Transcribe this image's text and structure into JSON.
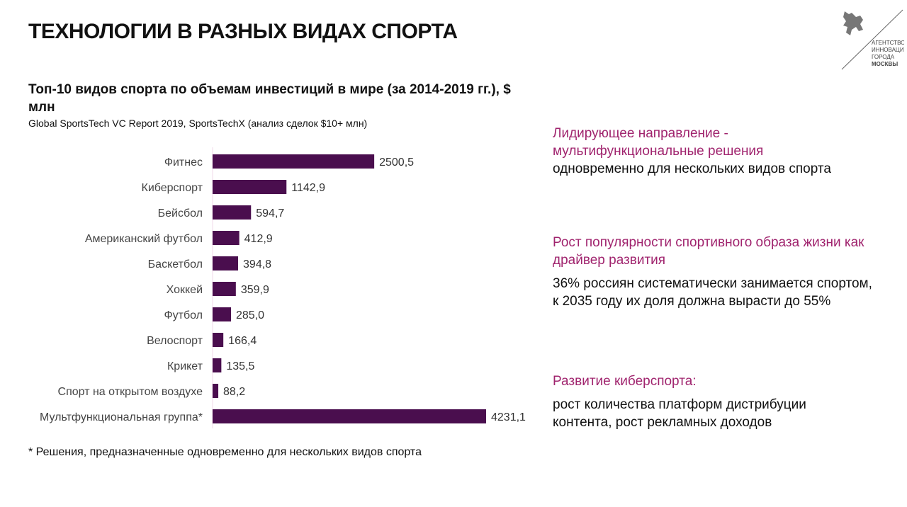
{
  "title": "ТЕХНОЛОГИИ В РАЗНЫХ ВИДАХ СПОРТА",
  "logo": {
    "lines": [
      "АГЕНТСТВО",
      "ИННОВАЦИЙ",
      "ГОРОДА",
      "МОСКВЫ"
    ]
  },
  "chart_data": {
    "type": "bar",
    "orientation": "horizontal",
    "title": "Топ-10 видов спорта по объемам инвестиций в мире (за 2014-2019 гг.), $ млн",
    "subtitle": "Global SportsTech VC Report 2019, SportsTechX (анализ сделок $10+ млн)",
    "categories": [
      "Фитнес",
      "Киберспорт",
      "Бейсбол",
      "Американский футбол",
      "Баскетбол",
      "Хоккей",
      "Футбол",
      "Велоспорт",
      "Крикет",
      "Спорт на открытом воздухе",
      "Мультфункциональная группа*"
    ],
    "values": [
      2500.5,
      1142.9,
      594.7,
      412.9,
      394.8,
      359.9,
      285.0,
      166.4,
      135.5,
      88.2,
      4231.1
    ],
    "labels": [
      "2500,5",
      "1142,9",
      "594,7",
      "412,9",
      "394,8",
      "359,9",
      "285,0",
      "166,4",
      "135,5",
      "88,2",
      "4231,1"
    ],
    "color": "#4a0e4e",
    "footnote": "* Решения, предназначенные одновременно для нескольких видов спорта"
  },
  "right": [
    {
      "heading": "Лидирующее направление - мультифункциональные решения",
      "text": "одновременно для нескольких видов спорта"
    },
    {
      "heading": "Рост популярности спортивного образа жизни как драйвер развития",
      "text": "36% россиян систематически занимается спортом, к 2035 году их доля должна вырасти до 55%"
    },
    {
      "heading": "Развитие киберспорта:",
      "text": "рост количества платформ дистрибуции контента, рост рекламных доходов"
    }
  ],
  "colors": {
    "accent": "#a0246e"
  }
}
